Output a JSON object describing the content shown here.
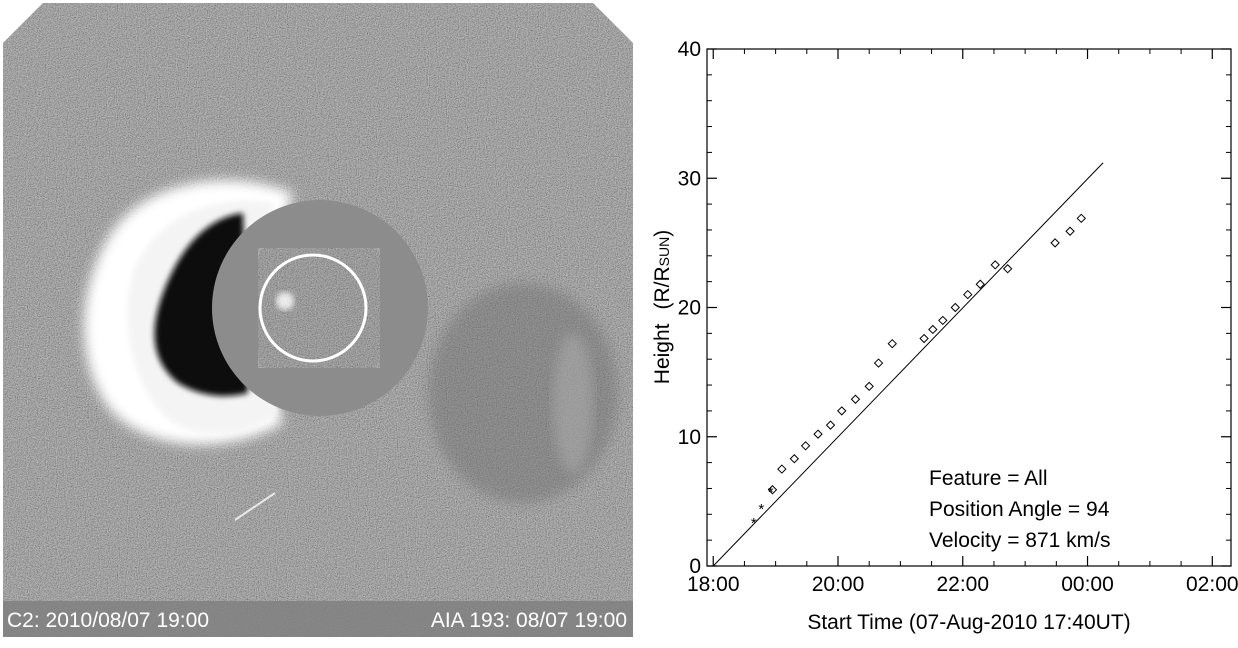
{
  "image_panel": {
    "caption_left": "C2: 2010/08/07 19:00",
    "caption_right": "AIA 193: 08/07 19:00",
    "colors": {
      "background_gray": "#7f7f7f",
      "occulter_gray": "#8c8c8c",
      "cme_bright": "#ffffff",
      "cme_dark": "#111111"
    }
  },
  "chart_data": {
    "type": "scatter",
    "xlabel": "Start Time (07-Aug-2010  17:40UT)",
    "ylabel": "Height",
    "ylabel_unit_prefix": "(R/R",
    "ylabel_unit_sub": "SUN",
    "ylabel_unit_suffix": ")",
    "x_ticks": [
      "18:00",
      "20:00",
      "22:00",
      "00:00",
      "02:00"
    ],
    "x_tick_hours": [
      18,
      20,
      22,
      24,
      26
    ],
    "y_ticks": [
      "0",
      "10",
      "20",
      "30",
      "40"
    ],
    "y_tick_values": [
      0,
      10,
      20,
      30,
      40
    ],
    "xlim_hours": [
      17.9,
      26.3
    ],
    "ylim": [
      0,
      40
    ],
    "annotations": [
      "Feature = All",
      "Position Angle = 94",
      "Velocity = 871 km/s"
    ],
    "series": [
      {
        "marker": "asterisk",
        "x_hours": [
          18.65,
          18.77,
          18.92
        ],
        "y": [
          3.4,
          4.5,
          5.8
        ]
      },
      {
        "marker": "diamond",
        "x_hours": [
          18.95,
          19.1,
          19.3,
          19.48,
          19.68,
          19.88,
          20.06,
          20.28,
          20.5,
          20.65,
          20.87,
          21.38,
          21.52,
          21.68,
          21.88,
          22.08,
          22.28,
          22.52,
          22.72,
          23.48,
          23.72,
          23.9
        ],
        "y": [
          5.9,
          7.5,
          8.3,
          9.3,
          10.2,
          10.9,
          12.0,
          12.9,
          13.9,
          15.7,
          17.2,
          17.6,
          18.3,
          19.0,
          20.0,
          21.0,
          21.8,
          23.3,
          23.0,
          25.0,
          25.9,
          26.9
        ]
      }
    ],
    "fit_line": {
      "x_hours": [
        18.0,
        24.25
      ],
      "y": [
        0.0,
        31.2
      ]
    }
  }
}
